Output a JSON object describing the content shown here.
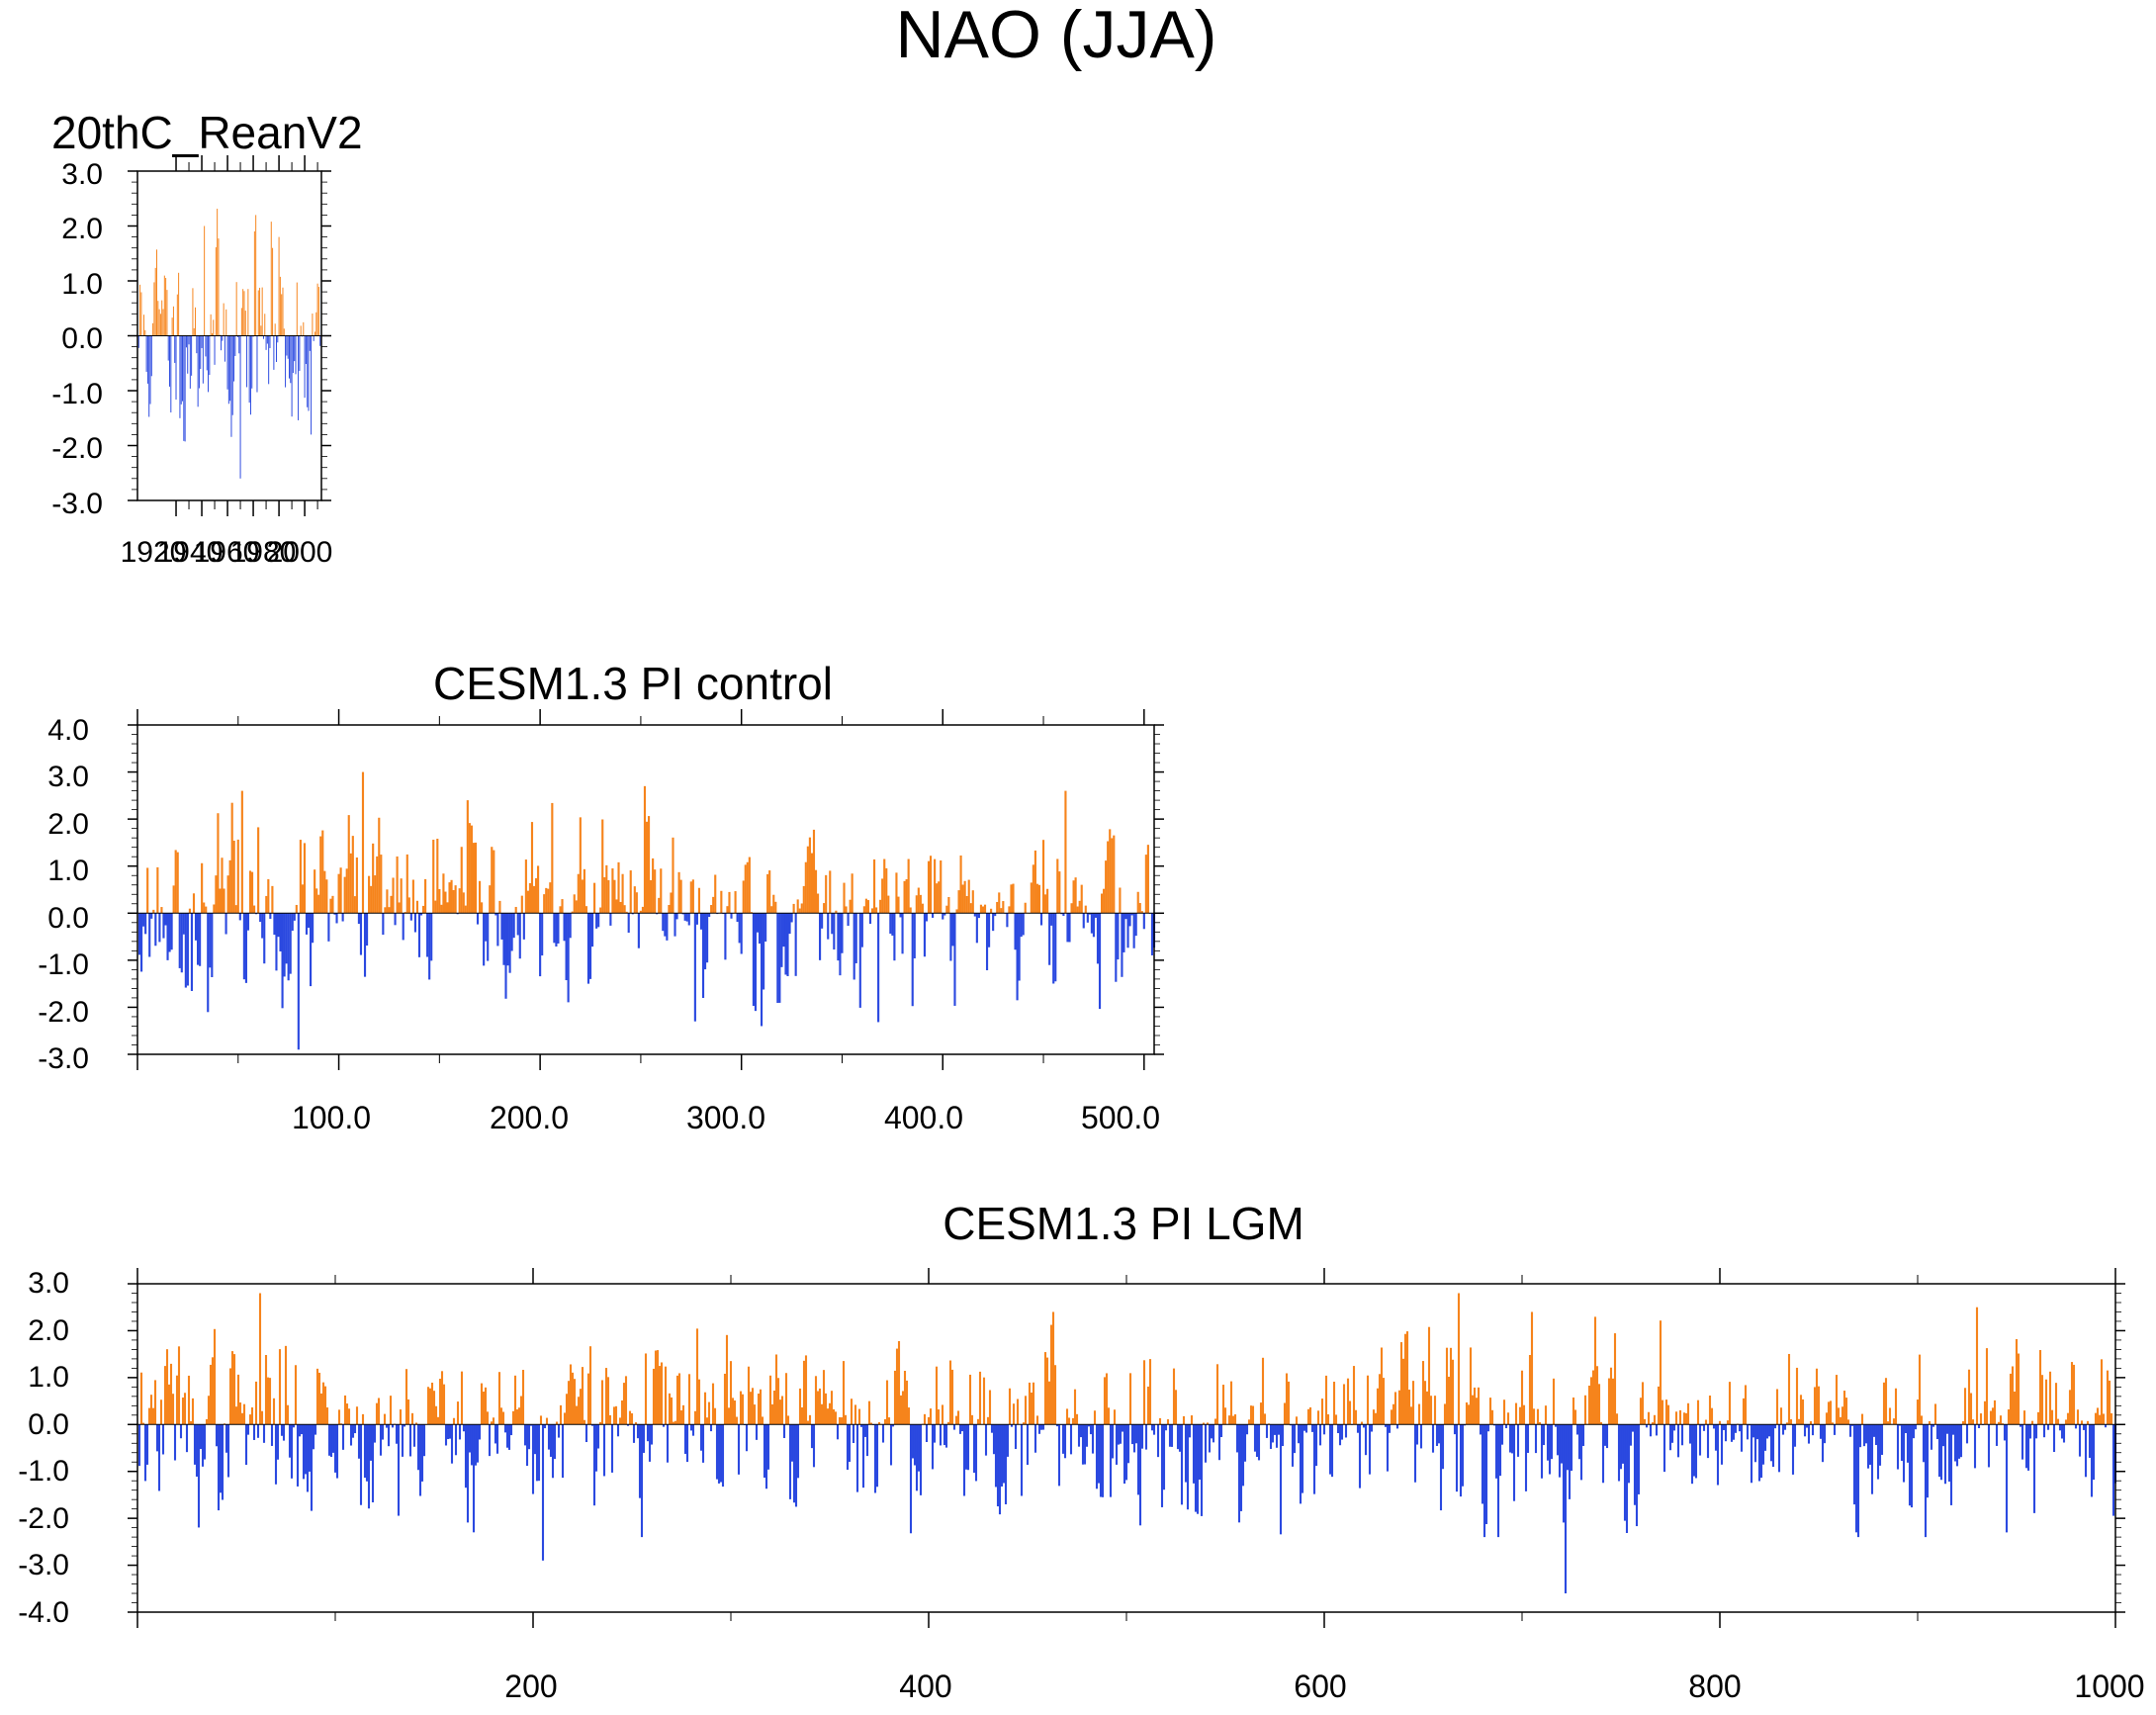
{
  "title": "NAO (JJA)",
  "colors": {
    "positive": "#f6841c",
    "negative": "#2b49e0",
    "axis": "#000000"
  },
  "chart_data": [
    {
      "type": "bar",
      "title": "20thC_ReanV2",
      "xlabel": "",
      "ylabel": "",
      "x_start": 1871,
      "x_end": 2012,
      "xlim": [
        1870,
        2013
      ],
      "ylim": [
        -3.0,
        3.0
      ],
      "y_ticks": [
        "-3.0",
        "-2.0",
        "-1.0",
        "0.0",
        "1.0",
        "2.0",
        "3.0"
      ],
      "x_ticks": [
        "1920",
        "1940",
        "1960",
        "1980",
        "2000"
      ],
      "x_tick_values": [
        1920,
        1940,
        1960,
        1980,
        2000
      ],
      "series_seed": 11,
      "peaks": [
        [
          1922,
          2.0
        ],
        [
          1950,
          -2.6
        ],
        [
          1962,
          2.2
        ],
        [
          1975,
          1.6
        ],
        [
          1980,
          1.8
        ],
        [
          2005,
          -1.8
        ]
      ]
    },
    {
      "type": "bar",
      "title": "CESM1.3 PI control",
      "xlabel": "",
      "ylabel": "",
      "x_start": 1,
      "x_end": 505,
      "xlim": [
        0,
        505
      ],
      "ylim": [
        -3.0,
        4.0
      ],
      "y_ticks": [
        "-3.0",
        "-2.0",
        "-1.0",
        "0.0",
        "1.0",
        "2.0",
        "3.0",
        "4.0"
      ],
      "x_ticks": [
        "100.0",
        "200.0",
        "300.0",
        "400.0",
        "500.0"
      ],
      "x_tick_values": [
        100,
        200,
        300,
        400,
        500
      ],
      "series_seed": 23,
      "peaks": [
        [
          52,
          2.6
        ],
        [
          80,
          -2.9
        ],
        [
          112,
          3.0
        ],
        [
          252,
          2.7
        ],
        [
          277,
          -2.3
        ],
        [
          461,
          2.6
        ]
      ]
    },
    {
      "type": "bar",
      "title": "CESM1.3 PI LGM",
      "xlabel": "",
      "ylabel": "",
      "x_start": 1,
      "x_end": 1000,
      "xlim": [
        0,
        1000
      ],
      "ylim": [
        -4.0,
        3.0
      ],
      "y_ticks": [
        "-4.0",
        "-3.0",
        "-2.0",
        "-1.0",
        "0.0",
        "1.0",
        "2.0",
        "3.0"
      ],
      "x_ticks": [
        "200",
        "400",
        "600",
        "800",
        "1000"
      ],
      "x_tick_values": [
        200,
        400,
        600,
        800,
        1000
      ],
      "series_seed": 37,
      "peaks": [
        [
          62,
          2.8
        ],
        [
          205,
          -2.9
        ],
        [
          668,
          2.8
        ],
        [
          722,
          -3.6
        ],
        [
          930,
          2.5
        ],
        [
          945,
          -2.3
        ]
      ]
    }
  ]
}
